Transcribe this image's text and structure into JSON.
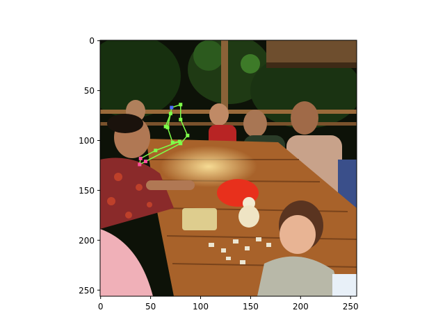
{
  "figure": {
    "x_ticks": [
      "0",
      "50",
      "100",
      "150",
      "200",
      "250"
    ],
    "y_ticks": [
      "0",
      "50",
      "100",
      "150",
      "200",
      "250"
    ]
  },
  "image": {
    "subject": "family dining at a wooden outdoor table at night",
    "colors": {
      "night_sky": "#0d1208",
      "foliage": "#1f3a14",
      "table": "#a8622a",
      "lamp_glow": "#f0d070",
      "pose_green": "#7fff4a",
      "pose_pink": "#ff4fa0",
      "pose_blue": "#4a6aff"
    }
  },
  "chart_data": {
    "type": "image",
    "xlim": [
      0,
      256
    ],
    "ylim": [
      256,
      0
    ],
    "pose_keypoints": [
      {
        "x": 80,
        "y": 64
      },
      {
        "x": 71,
        "y": 67
      },
      {
        "x": 70,
        "y": 73
      },
      {
        "x": 67,
        "y": 87
      },
      {
        "x": 80,
        "y": 79
      },
      {
        "x": 65,
        "y": 86
      },
      {
        "x": 87,
        "y": 95
      },
      {
        "x": 79,
        "y": 101
      },
      {
        "x": 72,
        "y": 102
      },
      {
        "x": 80,
        "y": 103
      },
      {
        "x": 55,
        "y": 110
      },
      {
        "x": 40,
        "y": 118
      },
      {
        "x": 39,
        "y": 124
      },
      {
        "x": 45,
        "y": 121
      }
    ]
  }
}
